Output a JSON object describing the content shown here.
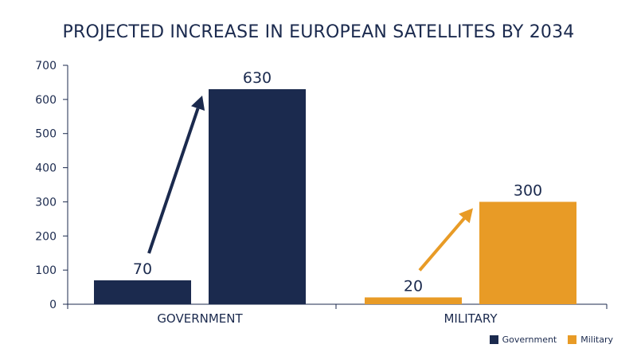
{
  "chart_data": {
    "type": "bar",
    "title": "PROJECTED INCREASE IN EUROPEAN SATELLITES BY 2034",
    "categories": [
      "GOVERNMENT",
      "MILITARY"
    ],
    "ylim": [
      0,
      700
    ],
    "yticks": [
      0,
      100,
      200,
      300,
      400,
      500,
      600,
      700
    ],
    "grid": false,
    "legend_position": "bottom-right",
    "groups": [
      {
        "category": "GOVERNMENT",
        "series": "Government",
        "color": "#1b2a4e",
        "values": [
          70,
          630
        ],
        "labels": [
          "70",
          "630"
        ]
      },
      {
        "category": "MILITARY",
        "series": "Military",
        "color": "#e89b26",
        "values": [
          20,
          300
        ],
        "labels": [
          "20",
          "300"
        ]
      }
    ],
    "legend": [
      {
        "name": "Government",
        "color": "#1b2a4e"
      },
      {
        "name": "Military",
        "color": "#e89b26"
      }
    ],
    "annotations": [
      "increase-arrow-government",
      "increase-arrow-military"
    ]
  }
}
